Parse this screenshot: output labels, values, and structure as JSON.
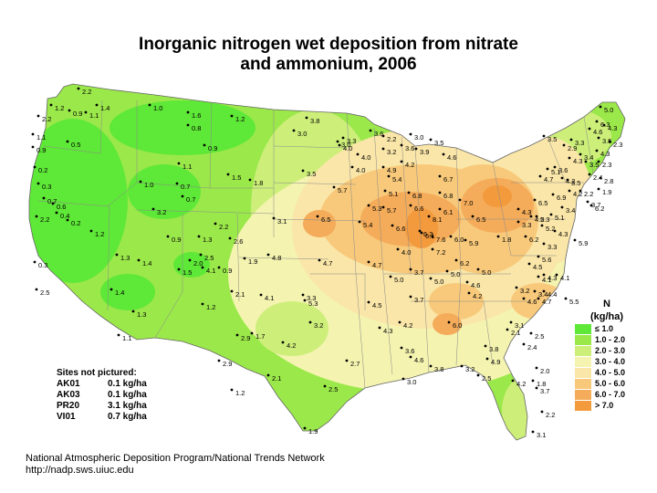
{
  "title_line1": "Inorganic nitrogen wet deposition from nitrate",
  "title_line2": "and ammonium, 2006",
  "legend": {
    "title": "N",
    "unit": "(kg/ha)",
    "items": [
      {
        "label": "≤ 1.0",
        "color": "#5ee837"
      },
      {
        "label": "1.0 - 2.0",
        "color": "#9be84a"
      },
      {
        "label": "2.0 - 3.0",
        "color": "#cdef7a"
      },
      {
        "label": "3.0 - 4.0",
        "color": "#f4f3b0"
      },
      {
        "label": "4.0 - 5.0",
        "color": "#fae6a8"
      },
      {
        "label": "5.0 - 6.0",
        "color": "#f8c97a"
      },
      {
        "label": "6.0 - 7.0",
        "color": "#f4ac5a"
      },
      {
        "label": "> 7.0",
        "color": "#f39a3c"
      }
    ]
  },
  "sites_not_pictured": {
    "heading": "Sites not pictured:",
    "rows": [
      {
        "site": "AK01",
        "value": "0.1 kg/ha"
      },
      {
        "site": "AK03",
        "value": "0.1 kg/ha"
      },
      {
        "site": "PR20",
        "value": "3.1 kg/ha"
      },
      {
        "site": "VI01",
        "value": "0.7 kg/ha"
      }
    ]
  },
  "credit_line1": "National Atmospheric Deposition Program/National Trends Network",
  "credit_line2": "http://nadp.sws.uiuc.edu",
  "site_values": [
    "2.2",
    "1.2",
    "0.9",
    "2.2",
    "1.4",
    "1.1",
    "1.0",
    "1.6",
    "1.2",
    "0.8",
    "1.1",
    "0.5",
    "0.9",
    "0.9",
    "0.2",
    "1.0",
    "1.1",
    "0.7",
    "0.7",
    "0.3",
    "1.5",
    "1.8",
    "3.2",
    "0.7",
    "0.6",
    "0.4",
    "2.2",
    "1.2",
    "0.2",
    "1.3",
    "0.9",
    "2.2",
    "1.3",
    "2.6",
    "1.4",
    "2.0",
    "2.5",
    "1.9",
    "1.5",
    "4.1",
    "0.9",
    "0.3",
    "2.5",
    "1.4",
    "1.3",
    "2.1",
    "1.2",
    "4.1",
    "1.1",
    "2.9",
    "1.7",
    "2.9",
    "1.2",
    "2.1",
    "2.5",
    "1.9",
    "3.0",
    "3.8",
    "3.0",
    "3.5",
    "3.1",
    "4.8",
    "4.7",
    "3.3",
    "4.2",
    "3.2",
    "2.7",
    "3.3",
    "4.0",
    "4.0",
    "4.0",
    "3.6",
    "2.2",
    "3.2",
    "3.0",
    "3.6",
    "3.9",
    "3.5",
    "4.6",
    "4.9",
    "5.4",
    "4.2",
    "5.7",
    "5.1",
    "5.7",
    "6.8",
    "6.8",
    "6.7",
    "6.5",
    "5.3",
    "6.6",
    "6.1",
    "7.0",
    "5.4",
    "6.6",
    "8.1",
    "6.2",
    "6.0",
    "4.0",
    "6.1",
    "7.6",
    "5.9",
    "4.7",
    "7.2",
    "6.2",
    "3.7",
    "5.0",
    "5.0",
    "4.6",
    "3.7",
    "5.0",
    "5.3",
    "4.5",
    "5.0",
    "4.2",
    "4.2",
    "4.3",
    "6.0",
    "3.6",
    "4.6",
    "3.8",
    "3.2",
    "3.0",
    "3.8",
    "4.9",
    "2.5",
    "2.0",
    "1.8",
    "3.1",
    "2.1",
    "2.5",
    "2.4",
    "3.7",
    "2.2",
    "3.1",
    "4.2",
    "1.8",
    "6.5",
    "6.2",
    "5.6",
    "4.3",
    "4.5",
    "4.1",
    "3.4",
    "3.2",
    "4.6",
    "4.7",
    "4.4",
    "5.5",
    "4.1",
    "3.3",
    "5.3",
    "5.2",
    "5.1",
    "4.3",
    "5.9",
    "6.9",
    "6.5",
    "4.7",
    "5.1",
    "4.2",
    "4.2",
    "3.4",
    "3.6",
    "4.3",
    "3.5",
    "4.2",
    "2.2",
    "2.9",
    "3.4",
    "3.5",
    "3.5",
    "3.3",
    "4.6",
    "4.3",
    "3.5",
    "4.3",
    "2.3",
    "2.3",
    "2.4",
    "2.8",
    "1.9",
    "3.7",
    "6.2",
    "6.3",
    "5.0",
    "4.3",
    "3.3"
  ]
}
